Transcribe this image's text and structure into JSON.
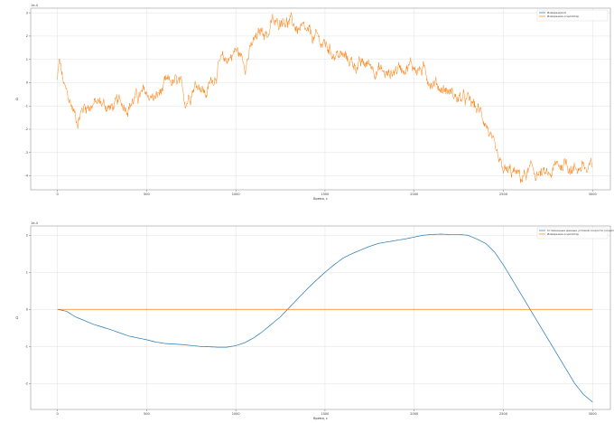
{
  "chart_data": [
    {
      "type": "line",
      "title": "",
      "offset_text": "1e-4",
      "xlabel": "Время, с",
      "ylabel": "Ω",
      "xlim": [
        -150,
        3100
      ],
      "ylim": [
        -4.6,
        3.2
      ],
      "x_ticks": [
        0,
        500,
        1000,
        1500,
        2000,
        2500,
        3000
      ],
      "x_tick_labels": [
        "0",
        "500",
        "1000",
        "1500",
        "2000",
        "2500",
        "3000"
      ],
      "y_ticks": [
        -4,
        -3,
        -2,
        -1,
        0,
        1,
        2,
        3
      ],
      "y_tick_labels": [
        "-4",
        "-3",
        "-2",
        "-1",
        "0",
        "1",
        "2",
        "3"
      ],
      "grid": true,
      "legend_placement": "top-right",
      "series": [
        {
          "name": "Измерения Ω",
          "color": "#1f77b4",
          "x": [],
          "y": []
        },
        {
          "name": "Измерения осцилятор",
          "color": "#ff7f0e",
          "x": [
            0,
            10,
            40,
            60,
            80,
            110,
            150,
            200,
            250,
            300,
            350,
            400,
            450,
            500,
            550,
            600,
            640,
            680,
            720,
            760,
            800,
            830,
            860,
            880,
            900,
            950,
            1000,
            1050,
            1100,
            1130,
            1150,
            1180,
            1200,
            1230,
            1260,
            1300,
            1350,
            1400,
            1450,
            1500,
            1550,
            1600,
            1650,
            1700,
            1750,
            1800,
            1850,
            1900,
            1950,
            2000,
            2050,
            2100,
            2150,
            2200,
            2250,
            2300,
            2350,
            2400,
            2420,
            2440,
            2460,
            2480,
            2520,
            2560,
            2600,
            2650,
            2700,
            2750,
            2800,
            2850,
            2900,
            2950,
            2970,
            3000
          ],
          "y": [
            0.1,
            0.9,
            -0.3,
            -0.7,
            -1.0,
            -1.6,
            -1.0,
            -0.9,
            -0.9,
            -1.1,
            -0.9,
            -0.9,
            -0.6,
            -0.5,
            -0.7,
            -0.2,
            0.0,
            -0.1,
            -0.8,
            -0.1,
            0.0,
            -0.5,
            0.0,
            0.3,
            0.7,
            1.0,
            1.4,
            0.9,
            1.7,
            2.0,
            2.3,
            2.1,
            2.6,
            2.4,
            2.9,
            2.6,
            2.3,
            2.0,
            1.9,
            1.6,
            1.3,
            1.1,
            0.9,
            0.7,
            0.8,
            0.6,
            0.3,
            0.6,
            0.8,
            0.7,
            0.5,
            0.1,
            -0.2,
            -0.4,
            -0.7,
            -0.8,
            -1.1,
            -1.6,
            -2.1,
            -2.8,
            -3.3,
            -3.7,
            -3.9,
            -3.9,
            -4.1,
            -3.8,
            -3.9,
            -4.1,
            -3.6,
            -3.4,
            -3.7,
            -3.5,
            -3.9,
            -3.6
          ]
        }
      ]
    },
    {
      "type": "line",
      "title": "",
      "offset_text": "1e-4",
      "xlabel": "Время, с",
      "ylabel": "Ω",
      "xlim": [
        -150,
        3100
      ],
      "ylim": [
        -2.7,
        2.25
      ],
      "x_ticks": [
        0,
        500,
        1000,
        1500,
        2000,
        2500,
        3000
      ],
      "x_tick_labels": [
        "0",
        "500",
        "1000",
        "1500",
        "2000",
        "2500",
        "3000"
      ],
      "y_ticks": [
        -2,
        -1,
        0,
        1,
        2
      ],
      "y_tick_labels": [
        "-2",
        "-1",
        "0",
        "1",
        "2"
      ],
      "grid": true,
      "legend_placement": "top-right",
      "series": [
        {
          "name": "Сглаженные данные угловой скорости (осцилятор)",
          "color": "#1f77b4",
          "x": [
            0,
            50,
            100,
            200,
            300,
            400,
            500,
            550,
            600,
            700,
            800,
            900,
            950,
            1000,
            1050,
            1100,
            1150,
            1200,
            1250,
            1300,
            1350,
            1400,
            1450,
            1500,
            1550,
            1600,
            1650,
            1700,
            1750,
            1800,
            1850,
            1900,
            1950,
            2000,
            2050,
            2100,
            2150,
            2200,
            2250,
            2300,
            2350,
            2400,
            2450,
            2500,
            2550,
            2600,
            2650,
            2700,
            2750,
            2800,
            2850,
            2900,
            2950,
            3000
          ],
          "y": [
            0.0,
            -0.05,
            -0.2,
            -0.4,
            -0.55,
            -0.72,
            -0.82,
            -0.88,
            -0.92,
            -0.95,
            -1.0,
            -1.02,
            -1.02,
            -0.98,
            -0.9,
            -0.77,
            -0.6,
            -0.4,
            -0.2,
            0.05,
            0.3,
            0.55,
            0.78,
            1.0,
            1.2,
            1.38,
            1.5,
            1.6,
            1.7,
            1.78,
            1.82,
            1.86,
            1.9,
            1.95,
            2.0,
            2.02,
            2.03,
            2.02,
            2.02,
            2.0,
            1.9,
            1.78,
            1.55,
            1.2,
            0.8,
            0.4,
            0.0,
            -0.4,
            -0.8,
            -1.2,
            -1.6,
            -2.0,
            -2.3,
            -2.5
          ]
        },
        {
          "name": "Измерения осцилятор",
          "color": "#ff7f0e",
          "x": [
            0,
            3000
          ],
          "y": [
            0.0,
            0.0
          ]
        }
      ]
    }
  ]
}
